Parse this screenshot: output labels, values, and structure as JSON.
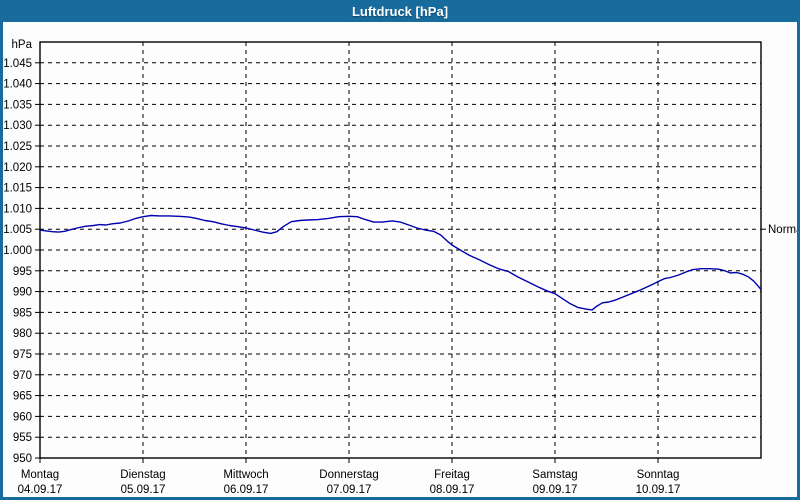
{
  "window": {
    "title": "Luftdruck [hPa]"
  },
  "colors": {
    "titlebar": "#186B9D",
    "border": "#186B9D",
    "title_text": "#ffffff",
    "curve": "#0000ad",
    "grid": "#000000",
    "background": "#fdfdfd"
  },
  "chart_data": {
    "type": "line",
    "title": "Luftdruck [hPa]",
    "unit_label": "hPa",
    "grid": {
      "dash": "4 4",
      "visible": true
    },
    "legend": "none",
    "y_axis": {
      "min": 950,
      "max": 1050,
      "ticks": [
        {
          "value": 1045,
          "label": "1.045"
        },
        {
          "value": 1040,
          "label": "1.040"
        },
        {
          "value": 1035,
          "label": "1.035"
        },
        {
          "value": 1030,
          "label": "1.030"
        },
        {
          "value": 1025,
          "label": "1.025"
        },
        {
          "value": 1020,
          "label": "1.020"
        },
        {
          "value": 1015,
          "label": "1.015"
        },
        {
          "value": 1010,
          "label": "1.010"
        },
        {
          "value": 1005,
          "label": "1.005"
        },
        {
          "value": 1000,
          "label": "1.000"
        },
        {
          "value": 995,
          "label": "995"
        },
        {
          "value": 990,
          "label": "990"
        },
        {
          "value": 985,
          "label": "985"
        },
        {
          "value": 980,
          "label": "980"
        },
        {
          "value": 975,
          "label": "975"
        },
        {
          "value": 970,
          "label": "970"
        },
        {
          "value": 965,
          "label": "965"
        },
        {
          "value": 960,
          "label": "960"
        },
        {
          "value": 955,
          "label": "955"
        },
        {
          "value": 950,
          "label": "950"
        }
      ]
    },
    "x_axis": {
      "days": 7,
      "ticks": [
        {
          "day": 0,
          "weekday": "Montag",
          "date": "04.09.17"
        },
        {
          "day": 1,
          "weekday": "Dienstag",
          "date": "05.09.17"
        },
        {
          "day": 2,
          "weekday": "Mittwoch",
          "date": "06.09.17"
        },
        {
          "day": 3,
          "weekday": "Donnerstag",
          "date": "07.09.17"
        },
        {
          "day": 4,
          "weekday": "Freitag",
          "date": "08.09.17"
        },
        {
          "day": 5,
          "weekday": "Samstag",
          "date": "09.09.17"
        },
        {
          "day": 6,
          "weekday": "Sonntag",
          "date": "10.09.17"
        }
      ]
    },
    "annotation": {
      "label": "Normal",
      "value": 1005
    },
    "series": [
      {
        "name": "Luftdruck",
        "color": "#0000ad",
        "points": [
          [
            0.0,
            1004.8
          ],
          [
            0.06,
            1004.6
          ],
          [
            0.12,
            1004.4
          ],
          [
            0.18,
            1004.3
          ],
          [
            0.24,
            1004.5
          ],
          [
            0.3,
            1004.9
          ],
          [
            0.36,
            1005.3
          ],
          [
            0.44,
            1005.7
          ],
          [
            0.52,
            1005.9
          ],
          [
            0.58,
            1006.1
          ],
          [
            0.64,
            1006.0
          ],
          [
            0.7,
            1006.3
          ],
          [
            0.78,
            1006.5
          ],
          [
            0.86,
            1007.0
          ],
          [
            0.93,
            1007.6
          ],
          [
            1.0,
            1008.0
          ],
          [
            1.08,
            1008.3
          ],
          [
            1.16,
            1008.2
          ],
          [
            1.25,
            1008.2
          ],
          [
            1.35,
            1008.1
          ],
          [
            1.45,
            1007.9
          ],
          [
            1.52,
            1007.6
          ],
          [
            1.6,
            1007.1
          ],
          [
            1.68,
            1006.8
          ],
          [
            1.76,
            1006.3
          ],
          [
            1.84,
            1005.9
          ],
          [
            1.92,
            1005.6
          ],
          [
            2.0,
            1005.3
          ],
          [
            2.08,
            1004.8
          ],
          [
            2.16,
            1004.3
          ],
          [
            2.24,
            1004.0
          ],
          [
            2.3,
            1004.4
          ],
          [
            2.36,
            1005.6
          ],
          [
            2.44,
            1006.8
          ],
          [
            2.52,
            1007.1
          ],
          [
            2.6,
            1007.2
          ],
          [
            2.7,
            1007.3
          ],
          [
            2.8,
            1007.6
          ],
          [
            2.9,
            1008.0
          ],
          [
            3.0,
            1008.1
          ],
          [
            3.08,
            1008.0
          ],
          [
            3.16,
            1007.3
          ],
          [
            3.24,
            1006.7
          ],
          [
            3.32,
            1006.7
          ],
          [
            3.42,
            1007.0
          ],
          [
            3.5,
            1006.7
          ],
          [
            3.58,
            1006.0
          ],
          [
            3.66,
            1005.3
          ],
          [
            3.74,
            1004.8
          ],
          [
            3.82,
            1004.5
          ],
          [
            3.89,
            1003.6
          ],
          [
            3.95,
            1002.2
          ],
          [
            4.0,
            1001.2
          ],
          [
            4.08,
            1000.0
          ],
          [
            4.17,
            998.7
          ],
          [
            4.27,
            997.6
          ],
          [
            4.36,
            996.5
          ],
          [
            4.46,
            995.4
          ],
          [
            4.55,
            994.8
          ],
          [
            4.64,
            993.5
          ],
          [
            4.74,
            992.3
          ],
          [
            4.83,
            991.2
          ],
          [
            4.92,
            990.2
          ],
          [
            5.0,
            989.5
          ],
          [
            5.06,
            988.5
          ],
          [
            5.14,
            987.2
          ],
          [
            5.22,
            986.2
          ],
          [
            5.3,
            985.8
          ],
          [
            5.36,
            985.6
          ],
          [
            5.4,
            986.4
          ],
          [
            5.46,
            987.3
          ],
          [
            5.52,
            987.5
          ],
          [
            5.58,
            987.9
          ],
          [
            5.66,
            988.7
          ],
          [
            5.74,
            989.5
          ],
          [
            5.82,
            990.3
          ],
          [
            5.9,
            991.2
          ],
          [
            5.96,
            991.9
          ],
          [
            6.0,
            992.4
          ],
          [
            6.06,
            993.1
          ],
          [
            6.12,
            993.4
          ],
          [
            6.2,
            994.0
          ],
          [
            6.28,
            994.8
          ],
          [
            6.34,
            995.3
          ],
          [
            6.42,
            995.5
          ],
          [
            6.5,
            995.5
          ],
          [
            6.58,
            995.4
          ],
          [
            6.64,
            995.1
          ],
          [
            6.7,
            994.5
          ],
          [
            6.76,
            994.6
          ],
          [
            6.82,
            994.2
          ],
          [
            6.88,
            993.5
          ],
          [
            6.93,
            992.5
          ],
          [
            6.97,
            991.4
          ],
          [
            7.0,
            990.5
          ]
        ]
      }
    ]
  }
}
